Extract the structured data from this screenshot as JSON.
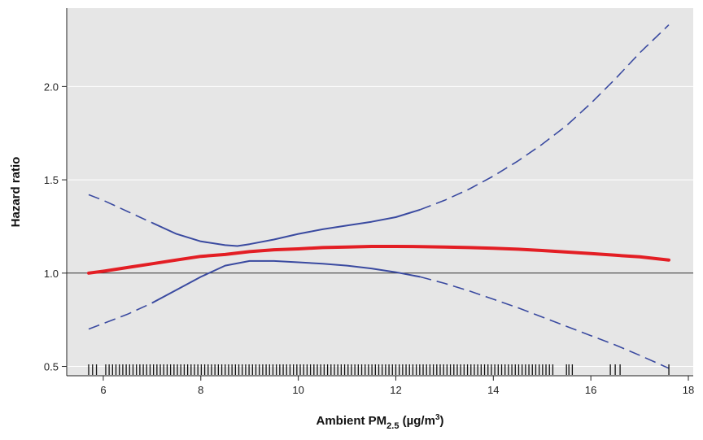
{
  "chart_data": {
    "type": "line",
    "title": "",
    "xlabel_parts": {
      "main": "Ambient PM",
      "sub": "2.5",
      "unit_open": " (µg/m",
      "sup": "3",
      "unit_close": ")"
    },
    "ylabel": "Hazard ratio",
    "xlim": [
      5.25,
      18.1
    ],
    "ylim": [
      0.45,
      2.42
    ],
    "x_ticks": [
      6,
      8,
      10,
      12,
      14,
      16,
      18
    ],
    "x_tick_labels": [
      "6",
      "8",
      "10",
      "12",
      "14",
      "16",
      "18"
    ],
    "y_ticks": [
      0.5,
      1.0,
      1.5,
      2.0
    ],
    "y_tick_labels": [
      "0.5",
      "1.0",
      "1.5",
      "2.0"
    ],
    "grid": "horizontal",
    "reference_line": 1.0,
    "colors": {
      "background": "#e6e6e6",
      "estimate": "#e31e24",
      "ci": "#3a4aa0",
      "reference": "#333333"
    },
    "series": [
      {
        "role": "estimate",
        "style": "solid",
        "x": [
          5.7,
          6,
          6.5,
          7,
          7.5,
          8,
          8.5,
          9,
          9.5,
          10,
          10.5,
          11,
          11.5,
          12,
          12.5,
          13,
          13.5,
          14,
          14.5,
          15,
          15.5,
          16,
          16.5,
          17,
          17.6
        ],
        "y": [
          1.0,
          1.01,
          1.03,
          1.05,
          1.07,
          1.09,
          1.1,
          1.115,
          1.125,
          1.13,
          1.137,
          1.14,
          1.143,
          1.143,
          1.142,
          1.14,
          1.137,
          1.133,
          1.128,
          1.121,
          1.113,
          1.105,
          1.096,
          1.087,
          1.07
        ]
      },
      {
        "role": "upper_ci",
        "style": "dashed-then-solid",
        "x": [
          5.7,
          6,
          6.5,
          7,
          7.5,
          8,
          8.5,
          8.75,
          9,
          9.5,
          10,
          10.5,
          11,
          11.5,
          12,
          12.5,
          13,
          13.5,
          14,
          14.5,
          15,
          15.5,
          16,
          16.5,
          17,
          17.6
        ],
        "y": [
          1.42,
          1.39,
          1.33,
          1.27,
          1.21,
          1.17,
          1.15,
          1.145,
          1.155,
          1.18,
          1.21,
          1.235,
          1.255,
          1.275,
          1.3,
          1.34,
          1.39,
          1.45,
          1.52,
          1.6,
          1.69,
          1.79,
          1.91,
          2.04,
          2.18,
          2.33
        ]
      },
      {
        "role": "lower_ci",
        "style": "dashed-then-solid",
        "x": [
          5.7,
          6,
          6.5,
          7,
          7.5,
          8,
          8.5,
          9,
          9.5,
          10,
          10.5,
          11,
          11.5,
          12,
          12.5,
          13,
          13.5,
          14,
          14.5,
          15,
          15.5,
          16,
          16.5,
          17,
          17.6
        ],
        "y": [
          0.7,
          0.73,
          0.78,
          0.84,
          0.91,
          0.98,
          1.04,
          1.065,
          1.065,
          1.058,
          1.05,
          1.04,
          1.025,
          1.005,
          0.98,
          0.945,
          0.905,
          0.86,
          0.815,
          0.765,
          0.715,
          0.665,
          0.615,
          0.56,
          0.49
        ]
      }
    ],
    "rug": [
      5.7,
      5.78,
      5.86,
      6.05,
      6.12,
      6.19,
      6.26,
      6.33,
      6.4,
      6.47,
      6.54,
      6.61,
      6.68,
      6.75,
      6.82,
      6.89,
      6.96,
      7.03,
      7.1,
      7.17,
      7.24,
      7.31,
      7.38,
      7.45,
      7.52,
      7.59,
      7.66,
      7.73,
      7.8,
      7.87,
      7.94,
      8.01,
      8.08,
      8.15,
      8.22,
      8.29,
      8.36,
      8.43,
      8.5,
      8.57,
      8.64,
      8.71,
      8.78,
      8.85,
      8.92,
      8.99,
      9.06,
      9.13,
      9.2,
      9.27,
      9.34,
      9.41,
      9.48,
      9.55,
      9.62,
      9.69,
      9.76,
      9.83,
      9.9,
      9.97,
      10.04,
      10.11,
      10.18,
      10.25,
      10.32,
      10.39,
      10.46,
      10.53,
      10.6,
      10.67,
      10.74,
      10.81,
      10.88,
      10.95,
      11.02,
      11.09,
      11.16,
      11.23,
      11.3,
      11.37,
      11.44,
      11.51,
      11.58,
      11.65,
      11.72,
      11.79,
      11.86,
      11.93,
      12.0,
      12.07,
      12.14,
      12.21,
      12.28,
      12.35,
      12.42,
      12.49,
      12.56,
      12.63,
      12.7,
      12.77,
      12.84,
      12.91,
      12.98,
      13.05,
      13.12,
      13.19,
      13.26,
      13.33,
      13.4,
      13.47,
      13.54,
      13.61,
      13.68,
      13.75,
      13.82,
      13.89,
      13.96,
      14.03,
      14.1,
      14.17,
      14.24,
      14.31,
      14.38,
      14.45,
      14.52,
      14.59,
      14.66,
      14.73,
      14.8,
      14.87,
      14.94,
      15.01,
      15.08,
      15.15,
      15.22,
      15.5,
      15.55,
      15.62,
      16.4,
      16.5,
      16.6,
      17.6
    ]
  }
}
